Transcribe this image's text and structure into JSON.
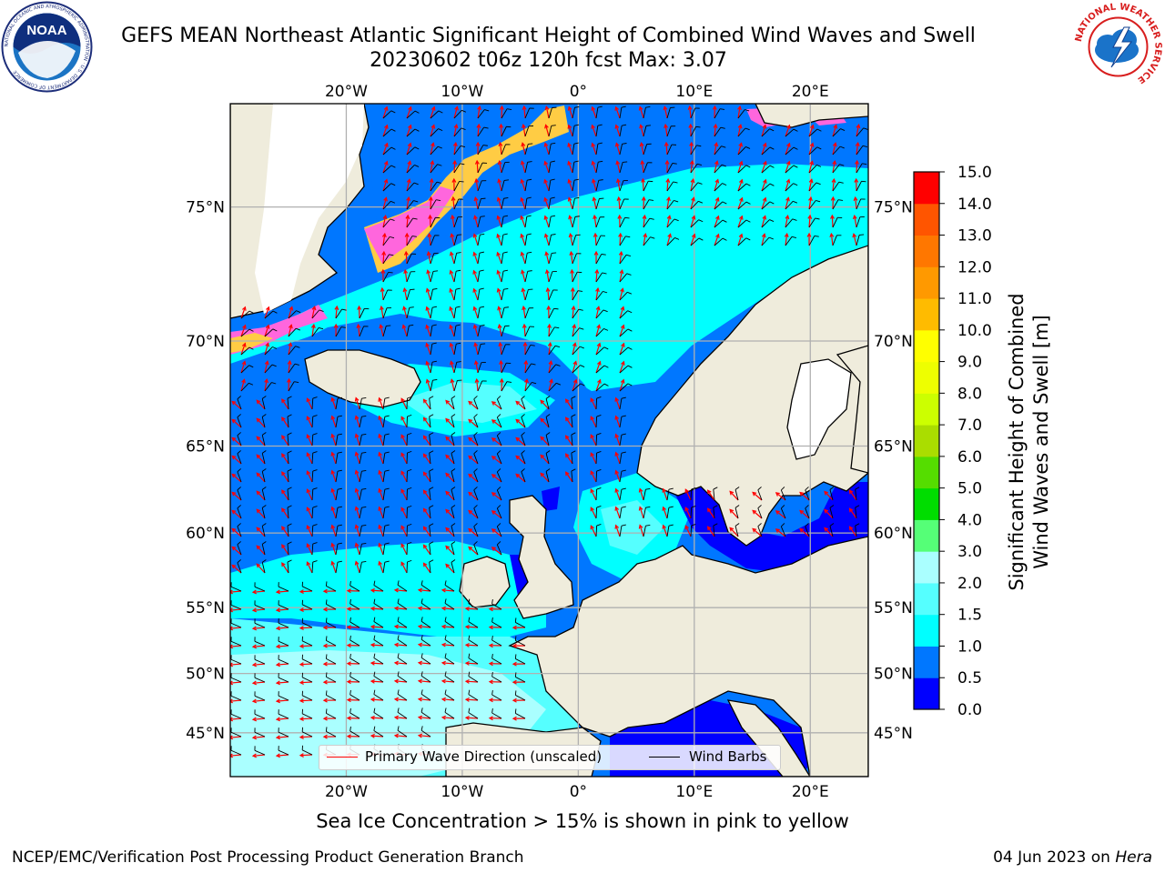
{
  "title": {
    "line1": "GEFS MEAN Northeast Atlantic Significant Height of Combined Wind Waves and Swell",
    "line2": "20230602 t06z 120h fcst   Max: 3.07"
  },
  "logos": {
    "left": {
      "name": "noaa-logo",
      "text": "NOAA",
      "ring_text": "NATIONAL OCEANIC AND ATMOSPHERIC ADMINISTRATION · U.S. DEPARTMENT OF COMMERCE"
    },
    "right": {
      "name": "nws-logo",
      "ring_text": "NATIONAL WEATHER SERVICE"
    }
  },
  "map": {
    "lon_range": [
      -30,
      25
    ],
    "lat_range": [
      41,
      78
    ],
    "projection": "mercator",
    "lon_ticks": [
      "20°W",
      "10°W",
      "0°",
      "10°E",
      "20°E"
    ],
    "lat_ticks": [
      "75°N",
      "70°N",
      "65°N",
      "60°N",
      "55°N",
      "50°N",
      "45°N"
    ],
    "land_color": "#efecdc",
    "coast_color": "#000000",
    "grid_color": "#b0b0b0"
  },
  "colorbar": {
    "label_line1": "Significant Height of Combined",
    "label_line2": "Wind Waves and Swell [m]",
    "ticks": [
      "0.0",
      "0.5",
      "1.0",
      "1.5",
      "2.0",
      "3.0",
      "4.0",
      "5.0",
      "6.0",
      "7.0",
      "8.0",
      "9.0",
      "10.0",
      "11.0",
      "12.0",
      "13.0",
      "14.0",
      "15.0"
    ],
    "colors": [
      "#0000ff",
      "#0077ff",
      "#00ffff",
      "#55ffff",
      "#aaffff",
      "#55ff77",
      "#00dd00",
      "#55dd00",
      "#aadd00",
      "#ccff00",
      "#eeff00",
      "#ffff00",
      "#ffbb00",
      "#ff9900",
      "#ff7700",
      "#ff5500",
      "#ff0000"
    ]
  },
  "legend": {
    "wave_dir": "Primary Wave Direction (unscaled)",
    "wind_barbs": "Wind Barbs",
    "wave_color": "#ff0000",
    "barb_color": "#000000"
  },
  "caption": "Sea Ice Concentration > 15% is shown in pink to yellow",
  "footer": {
    "left": "NCEP/EMC/Verification Post Processing Product Generation Branch",
    "right_prefix": "04 Jun 2023 on ",
    "right_machine": "Hera"
  }
}
